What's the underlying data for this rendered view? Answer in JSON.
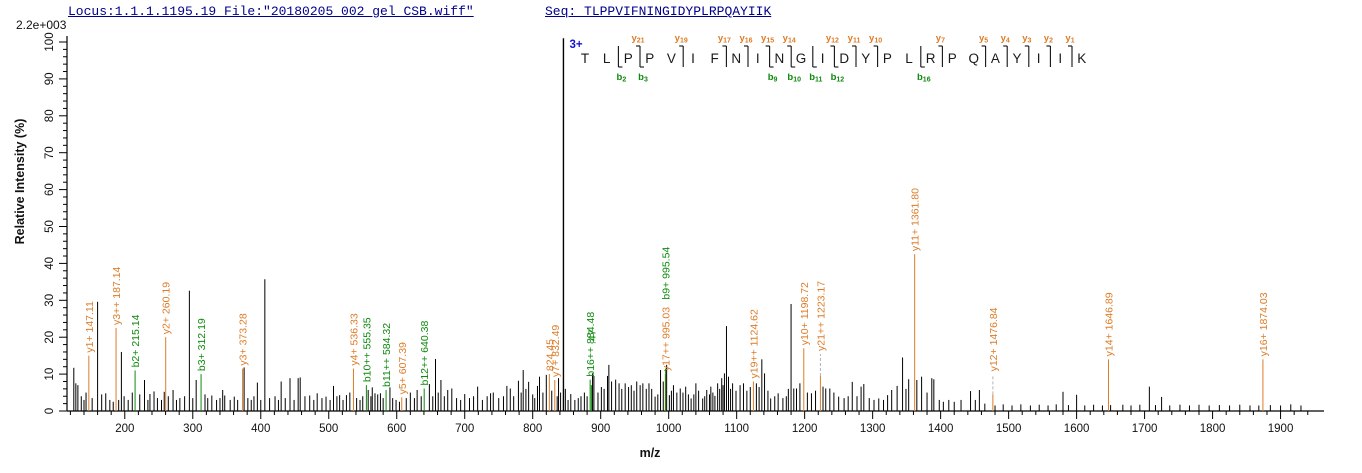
{
  "header": {
    "locus_file": "Locus:1.1.1.1195.19 File:\"20180205_002_gel_CSB.wiff\"",
    "seq_prefix": "Seq: ",
    "sequence": "TLPPVIFNINGIDYPLRPQAYIIK",
    "max_intensity": "2.2e+003"
  },
  "colors": {
    "y_ion": "#DD7C28",
    "b_ion": "#0E8A0E",
    "peak": "#000000",
    "axis": "#000000",
    "dash": "#b3b3b3",
    "charge": "#1414CC",
    "header_navy": "#00008B",
    "residue": "#1a1a1a"
  },
  "sequence_annotation": {
    "charge": "3+",
    "residues": [
      "T",
      "L",
      "P",
      "P",
      "V",
      "I",
      "F",
      "N",
      "I",
      "N",
      "G",
      "I",
      "D",
      "Y",
      "P",
      "L",
      "R",
      "P",
      "Q",
      "A",
      "Y",
      "I",
      "I",
      "K"
    ],
    "cleavages": [
      {
        "after": 2,
        "b": "b2"
      },
      {
        "after": 3,
        "b": "b3",
        "y": "y21"
      },
      {
        "after": 5,
        "y": "y19"
      },
      {
        "after": 7,
        "y": "y17"
      },
      {
        "after": 8,
        "y": "y16"
      },
      {
        "after": 9,
        "y": "y15",
        "b": "b9"
      },
      {
        "after": 10,
        "y": "y14",
        "b": "b10"
      },
      {
        "after": 11,
        "b": "b11"
      },
      {
        "after": 12,
        "y": "y12",
        "b": "b12"
      },
      {
        "after": 13,
        "y": "y11"
      },
      {
        "after": 14,
        "y": "y10"
      },
      {
        "after": 16,
        "b": "b16"
      },
      {
        "after": 17,
        "y": "y7"
      },
      {
        "after": 19,
        "y": "y5"
      },
      {
        "after": 20,
        "y": "y4"
      },
      {
        "after": 21,
        "y": "y3"
      },
      {
        "after": 22,
        "y": "y2"
      },
      {
        "after": 23,
        "y": "y1"
      }
    ]
  },
  "chart_data": {
    "type": "bar",
    "subtype": "ms2-mass-spectrum",
    "xlabel": "m/z",
    "ylabel": "Relative  Intensity (%)",
    "xlim": [
      115,
      1958
    ],
    "ylim": [
      0,
      100
    ],
    "x_label_start": 200,
    "x_label_end": 1900,
    "x_major_step": 100,
    "x_minor_step": 20,
    "y_major_step": 10,
    "y_minor_step": 2,
    "base_peak": {
      "mz": 845.2,
      "intensity": 101
    },
    "labeled_peaks": [
      {
        "mz": 147.11,
        "intensity": 15,
        "ion": "y",
        "label": "y1+ 147.11"
      },
      {
        "mz": 187.14,
        "intensity": 22.5,
        "ion": "y",
        "label": "y3++ 187.14"
      },
      {
        "mz": 215.14,
        "intensity": 11,
        "ion": "b",
        "label": "b2+ 215.14"
      },
      {
        "mz": 260.19,
        "intensity": 20,
        "ion": "y",
        "label": "y2+ 260.19"
      },
      {
        "mz": 312.19,
        "intensity": 10,
        "ion": "b",
        "label": "b3+ 312.19"
      },
      {
        "mz": 373.28,
        "intensity": 11.5,
        "ion": "y",
        "label": "y3+ 373.28"
      },
      {
        "mz": 536.33,
        "intensity": 11.5,
        "ion": "y",
        "label": "y4+ 536.33"
      },
      {
        "mz": 555.35,
        "intensity": 7,
        "ion": "b",
        "label": "b10++ 555.35"
      },
      {
        "mz": 584.32,
        "intensity": 5.7,
        "ion": "b",
        "label": "b11++ 584.32"
      },
      {
        "mz": 607.39,
        "intensity": 3.7,
        "ion": "y",
        "label": "y5+ 607.39"
      },
      {
        "mz": 640.38,
        "intensity": 6.1,
        "ion": "b",
        "label": "b12++ 640.38"
      },
      {
        "mz": 824.45,
        "intensity": 10,
        "ion": "y",
        "label": "824.45"
      },
      {
        "mz": 832.49,
        "intensity": 8.4,
        "ion": "y",
        "label": "y7+ 832.49"
      },
      {
        "mz": 884.48,
        "intensity": 8.5,
        "ion": "b",
        "label": "b16++ 884.48"
      },
      {
        "mz": 886.3,
        "intensity": 7,
        "ion": "b",
        "label": ".47",
        "lift": 38
      },
      {
        "mz": 995.03,
        "intensity": 10,
        "ion": "y",
        "label": "y17++ 995.03"
      },
      {
        "mz": 995.54,
        "intensity": 11.5,
        "ion": "b",
        "label": "b9+ 995.54",
        "lift": 66
      },
      {
        "mz": 1124.62,
        "intensity": 8,
        "ion": "y",
        "label": "y19++ 1124.62"
      },
      {
        "mz": 1198.72,
        "intensity": 17,
        "ion": "y",
        "label": "y10+ 1198.72"
      },
      {
        "mz": 1223.17,
        "intensity": 9.5,
        "ion": "y",
        "label": "y21++ 1223.17",
        "dash": 22
      },
      {
        "mz": 1361.8,
        "intensity": 42.5,
        "ion": "y",
        "label": "y11+ 1361.80"
      },
      {
        "mz": 1476.84,
        "intensity": 4.5,
        "ion": "y",
        "label": "y12+ 1476.84",
        "dash": 20
      },
      {
        "mz": 1646.89,
        "intensity": 14,
        "ion": "y",
        "label": "y14+ 1646.89"
      },
      {
        "mz": 1874.03,
        "intensity": 14,
        "ion": "y",
        "label": "y16+ 1874.03"
      }
    ],
    "peaks": [
      [
        125,
        11.7
      ],
      [
        128,
        7.5
      ],
      [
        131,
        7
      ],
      [
        136,
        4
      ],
      [
        140,
        3
      ],
      [
        143,
        5
      ],
      [
        152,
        3.5
      ],
      [
        160,
        29.6
      ],
      [
        166,
        4.5
      ],
      [
        172,
        4.8
      ],
      [
        178,
        3
      ],
      [
        183,
        2.5
      ],
      [
        191,
        3
      ],
      [
        195,
        16
      ],
      [
        199,
        4
      ],
      [
        205,
        3
      ],
      [
        211,
        5
      ],
      [
        222,
        4.5
      ],
      [
        229,
        8.4
      ],
      [
        234,
        3
      ],
      [
        237,
        4.6
      ],
      [
        243,
        5.3
      ],
      [
        248,
        3.5
      ],
      [
        254,
        3
      ],
      [
        258,
        5.2
      ],
      [
        264,
        4
      ],
      [
        271,
        5.7
      ],
      [
        276,
        3
      ],
      [
        281,
        3.5
      ],
      [
        288,
        4
      ],
      [
        295,
        32.6
      ],
      [
        300,
        3.5
      ],
      [
        305,
        8.4
      ],
      [
        318,
        4.5
      ],
      [
        322,
        3.5
      ],
      [
        328,
        4.2
      ],
      [
        335,
        3
      ],
      [
        340,
        3.5
      ],
      [
        344,
        5.7
      ],
      [
        347,
        4.2
      ],
      [
        355,
        3
      ],
      [
        361,
        3.9
      ],
      [
        366,
        3
      ],
      [
        375.5,
        11.8
      ],
      [
        381,
        3.5
      ],
      [
        386,
        3
      ],
      [
        390,
        4
      ],
      [
        395,
        7.7
      ],
      [
        400,
        3
      ],
      [
        406,
        35.7
      ],
      [
        413,
        3.5
      ],
      [
        421,
        4
      ],
      [
        426,
        3
      ],
      [
        430,
        8
      ],
      [
        436,
        3.5
      ],
      [
        443,
        8.9
      ],
      [
        449,
        3
      ],
      [
        455,
        8.9
      ],
      [
        458,
        9.1
      ],
      [
        465,
        4
      ],
      [
        472,
        4.2
      ],
      [
        478,
        3
      ],
      [
        483,
        4.8
      ],
      [
        490,
        3.5
      ],
      [
        496,
        3.9
      ],
      [
        502,
        3
      ],
      [
        507,
        6.8
      ],
      [
        512,
        4
      ],
      [
        516,
        4.3
      ],
      [
        521,
        3
      ],
      [
        526,
        4.3
      ],
      [
        531,
        5
      ],
      [
        541,
        3.5
      ],
      [
        546,
        3
      ],
      [
        550,
        4
      ],
      [
        558,
        5.7
      ],
      [
        562,
        4
      ],
      [
        564,
        6.4
      ],
      [
        568,
        4.8
      ],
      [
        572,
        4.5
      ],
      [
        576,
        4.8
      ],
      [
        580,
        3.5
      ],
      [
        590,
        6.4
      ],
      [
        594,
        3.5
      ],
      [
        599,
        3
      ],
      [
        604,
        2.5
      ],
      [
        614,
        3.5
      ],
      [
        620,
        5
      ],
      [
        626,
        3.5
      ],
      [
        630,
        5.7
      ],
      [
        636,
        4
      ],
      [
        648,
        7.3
      ],
      [
        653,
        4
      ],
      [
        657,
        14.1
      ],
      [
        661,
        5
      ],
      [
        665,
        8.4
      ],
      [
        670,
        4
      ],
      [
        675,
        5.7
      ],
      [
        681,
        6.1
      ],
      [
        688,
        3.5
      ],
      [
        694,
        3
      ],
      [
        700,
        4.6
      ],
      [
        707,
        3.5
      ],
      [
        713,
        4
      ],
      [
        719,
        6.6
      ],
      [
        726,
        3
      ],
      [
        733,
        4
      ],
      [
        738,
        4.8
      ],
      [
        742,
        5
      ],
      [
        750,
        3.5
      ],
      [
        757,
        4
      ],
      [
        762,
        6.8
      ],
      [
        767,
        6.1
      ],
      [
        772,
        4
      ],
      [
        779,
        8.2
      ],
      [
        783,
        5
      ],
      [
        786,
        11.1
      ],
      [
        790,
        6
      ],
      [
        794,
        7.9
      ],
      [
        800,
        4.5
      ],
      [
        803,
        3.5
      ],
      [
        807,
        6.8
      ],
      [
        810,
        9.3
      ],
      [
        815,
        5
      ],
      [
        820,
        9.8
      ],
      [
        828,
        5.5
      ],
      [
        836,
        4
      ],
      [
        838,
        8.9
      ],
      [
        841,
        5
      ],
      [
        848,
        6
      ],
      [
        852,
        3
      ],
      [
        856,
        4.6
      ],
      [
        862,
        3
      ],
      [
        867,
        3.5
      ],
      [
        871,
        4
      ],
      [
        876,
        5
      ],
      [
        880,
        4
      ],
      [
        888,
        10.2
      ],
      [
        890,
        9.5
      ],
      [
        896,
        5
      ],
      [
        901,
        6.5
      ],
      [
        905,
        6
      ],
      [
        910,
        9.5
      ],
      [
        912,
        12.5
      ],
      [
        916,
        8
      ],
      [
        922,
        8.5
      ],
      [
        927,
        7.5
      ],
      [
        931,
        6
      ],
      [
        936,
        7.5
      ],
      [
        941,
        6.5
      ],
      [
        945,
        7
      ],
      [
        949,
        5.5
      ],
      [
        953,
        8
      ],
      [
        958,
        7
      ],
      [
        962,
        7.5
      ],
      [
        967,
        6
      ],
      [
        971,
        7.5
      ],
      [
        975,
        6
      ],
      [
        980,
        3.9
      ],
      [
        984,
        4.5
      ],
      [
        988,
        11.1
      ],
      [
        992,
        8
      ],
      [
        997,
        12.5
      ],
      [
        1001,
        4.3
      ],
      [
        1004,
        5.5
      ],
      [
        1007,
        7
      ],
      [
        1012,
        5
      ],
      [
        1017,
        6.1
      ],
      [
        1021,
        5
      ],
      [
        1025,
        6.6
      ],
      [
        1029,
        4.5
      ],
      [
        1033,
        3.4
      ],
      [
        1037,
        4.5
      ],
      [
        1040,
        7.5
      ],
      [
        1044,
        5.5
      ],
      [
        1050,
        3.4
      ],
      [
        1053,
        4
      ],
      [
        1056,
        5.7
      ],
      [
        1060,
        4.5
      ],
      [
        1062,
        6.6
      ],
      [
        1065,
        5
      ],
      [
        1068,
        4.1
      ],
      [
        1072,
        7.5
      ],
      [
        1075,
        6
      ],
      [
        1078,
        8.9
      ],
      [
        1080,
        7
      ],
      [
        1082,
        10.2
      ],
      [
        1085,
        23
      ],
      [
        1088,
        9.3
      ],
      [
        1091,
        6
      ],
      [
        1094,
        7.5
      ],
      [
        1099,
        5.5
      ],
      [
        1105,
        7
      ],
      [
        1110,
        7.5
      ],
      [
        1115,
        5.5
      ],
      [
        1120,
        6.5
      ],
      [
        1129,
        7.5
      ],
      [
        1133,
        6.5
      ],
      [
        1137,
        14
      ],
      [
        1141,
        10.2
      ],
      [
        1146,
        5.5
      ],
      [
        1150,
        3.4
      ],
      [
        1156,
        4
      ],
      [
        1161,
        4.8
      ],
      [
        1168,
        3.5
      ],
      [
        1173,
        4
      ],
      [
        1176,
        6
      ],
      [
        1180,
        29
      ],
      [
        1184,
        6.1
      ],
      [
        1188,
        6.1
      ],
      [
        1193,
        7.5
      ],
      [
        1204,
        5
      ],
      [
        1210,
        4.8
      ],
      [
        1216,
        5.5
      ],
      [
        1227,
        6.6
      ],
      [
        1231,
        6.1
      ],
      [
        1237,
        6.1
      ],
      [
        1243,
        5
      ],
      [
        1250,
        3.9
      ],
      [
        1258,
        3.5
      ],
      [
        1264,
        4
      ],
      [
        1270,
        7.9
      ],
      [
        1277,
        4
      ],
      [
        1283,
        6.6
      ],
      [
        1287,
        7.3
      ],
      [
        1295,
        3.5
      ],
      [
        1302,
        3
      ],
      [
        1309,
        3.4
      ],
      [
        1316,
        3
      ],
      [
        1322,
        4.3
      ],
      [
        1328,
        5.7
      ],
      [
        1336,
        6.8
      ],
      [
        1344,
        14.5
      ],
      [
        1349,
        6
      ],
      [
        1353,
        8.6
      ],
      [
        1365,
        8.4
      ],
      [
        1372,
        9.3
      ],
      [
        1380,
        5
      ],
      [
        1387,
        8.9
      ],
      [
        1390,
        8.6
      ],
      [
        1398,
        3
      ],
      [
        1404,
        2.5
      ],
      [
        1412,
        3
      ],
      [
        1420,
        2.5
      ],
      [
        1430,
        3
      ],
      [
        1444,
        5.4
      ],
      [
        1451,
        3
      ],
      [
        1457,
        5.7
      ],
      [
        1465,
        2
      ],
      [
        1480,
        1.5
      ],
      [
        1492,
        1.8
      ],
      [
        1505,
        1.5
      ],
      [
        1518,
        1.8
      ],
      [
        1532,
        1.5
      ],
      [
        1545,
        1.7
      ],
      [
        1558,
        1.5
      ],
      [
        1570,
        1.8
      ],
      [
        1580,
        5.2
      ],
      [
        1588,
        1.6
      ],
      [
        1600,
        4.4
      ],
      [
        1612,
        1.5
      ],
      [
        1625,
        1.7
      ],
      [
        1638,
        1.5
      ],
      [
        1650,
        1.6
      ],
      [
        1668,
        1.7
      ],
      [
        1680,
        1.5
      ],
      [
        1693,
        1.7
      ],
      [
        1707,
        6.6
      ],
      [
        1716,
        1.6
      ],
      [
        1725,
        3.8
      ],
      [
        1737,
        1.5
      ],
      [
        1752,
        1.7
      ],
      [
        1766,
        1.5
      ],
      [
        1780,
        1.7
      ],
      [
        1795,
        1.5
      ],
      [
        1810,
        1.6
      ],
      [
        1825,
        1.5
      ],
      [
        1840,
        1.7
      ],
      [
        1855,
        1.5
      ],
      [
        1868,
        1.5
      ],
      [
        1885,
        1.6
      ],
      [
        1900,
        1.5
      ],
      [
        1915,
        1.8
      ],
      [
        1930,
        1.5
      ]
    ]
  }
}
